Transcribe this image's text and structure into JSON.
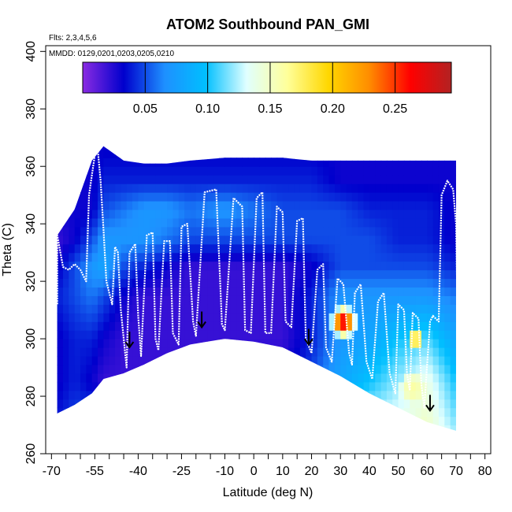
{
  "chart_data": {
    "type": "heatmap",
    "title": "ATOM2 Southbound PAN_GMI",
    "subtitle_flights": "Flts: 2,3,4,5,6",
    "subtitle_dates": "MMDD: 0129,0201,0203,0205,0210",
    "xlabel": "Latitude (deg N)",
    "ylabel": "Theta (C)",
    "xlim": [
      -72,
      82
    ],
    "ylim": [
      260,
      402
    ],
    "x_ticks": [
      -70,
      -55,
      -40,
      -25,
      -10,
      0,
      10,
      20,
      30,
      40,
      50,
      60,
      70,
      80
    ],
    "x_minor_ticks": [
      -65,
      -60,
      -50,
      -45,
      -35,
      -30,
      -20,
      -15,
      -5,
      5,
      15,
      25,
      35,
      45,
      55,
      65,
      75
    ],
    "y_ticks": [
      260,
      280,
      300,
      320,
      340,
      360,
      380,
      400
    ],
    "colorbar": {
      "range": [
        0.0,
        0.295
      ],
      "ticks": [
        0.05,
        0.1,
        0.15,
        0.2,
        0.25
      ],
      "tick_labels": [
        "0.05",
        "0.10",
        "0.15",
        "0.20",
        "0.25"
      ],
      "colors": [
        "#8a2be2",
        "#0000cd",
        "#1e90ff",
        "#00bfff",
        "#e0ffff",
        "#ffff99",
        "#ffd700",
        "#ff8c00",
        "#ff0000",
        "#b22222"
      ]
    },
    "domain": {
      "lat": [
        -68,
        -62,
        -56,
        -52,
        -45,
        -38,
        -30,
        -22,
        -10,
        0,
        10,
        20,
        30,
        40,
        50,
        60,
        70
      ],
      "theta_top": [
        336,
        345,
        362,
        367,
        362,
        361,
        361,
        362,
        363,
        363,
        363,
        362,
        362,
        362,
        362,
        362,
        362
      ],
      "theta_bottom": [
        274,
        277,
        281,
        286,
        288,
        291,
        295,
        298,
        300,
        299,
        297,
        292,
        287,
        281,
        276,
        271,
        268
      ]
    },
    "field_bands": [
      {
        "theta": 268,
        "values": [
          0.04,
          0.05,
          0.06,
          0.06,
          0.07,
          0.08,
          0.08,
          0.09,
          0.1,
          0.1,
          0.1,
          0.11,
          0.12,
          0.13,
          0.14,
          0.15,
          0.12
        ]
      },
      {
        "theta": 285,
        "values": [
          0.03,
          0.04,
          0.03,
          0.02,
          0.02,
          0.02,
          0.02,
          0.02,
          0.02,
          0.03,
          0.03,
          0.05,
          0.08,
          0.1,
          0.12,
          0.14,
          0.1
        ]
      },
      {
        "theta": 300,
        "values": [
          0.03,
          0.04,
          0.04,
          0.03,
          0.02,
          0.02,
          0.02,
          0.02,
          0.02,
          0.02,
          0.02,
          0.04,
          0.07,
          0.08,
          0.1,
          0.11,
          0.08
        ]
      },
      {
        "theta": 315,
        "values": [
          0.04,
          0.05,
          0.06,
          0.05,
          0.03,
          0.02,
          0.02,
          0.02,
          0.02,
          0.02,
          0.02,
          0.04,
          0.07,
          0.07,
          0.07,
          0.07,
          0.06
        ]
      },
      {
        "theta": 325,
        "values": [
          0.03,
          0.05,
          0.07,
          0.08,
          0.05,
          0.04,
          0.03,
          0.02,
          0.02,
          0.02,
          0.02,
          0.03,
          0.05,
          0.05,
          0.05,
          0.05,
          0.04
        ]
      },
      {
        "theta": 335,
        "values": [
          0.02,
          0.03,
          0.05,
          0.07,
          0.07,
          0.07,
          0.06,
          0.05,
          0.05,
          0.05,
          0.05,
          0.05,
          0.05,
          0.05,
          0.04,
          0.04,
          0.03
        ]
      },
      {
        "theta": 345,
        "values": [
          0.03,
          0.03,
          0.03,
          0.05,
          0.06,
          0.07,
          0.07,
          0.06,
          0.07,
          0.06,
          0.05,
          0.05,
          0.05,
          0.04,
          0.04,
          0.04,
          0.03
        ]
      },
      {
        "theta": 355,
        "values": [
          0.03,
          0.03,
          0.03,
          0.04,
          0.04,
          0.04,
          0.04,
          0.04,
          0.04,
          0.04,
          0.04,
          0.04,
          0.03,
          0.03,
          0.03,
          0.03,
          0.03
        ]
      },
      {
        "theta": 368,
        "values": [
          0.03,
          0.03,
          0.03,
          0.03,
          0.03,
          0.03,
          0.03,
          0.03,
          0.03,
          0.03,
          0.03,
          0.03,
          0.03,
          0.03,
          0.03,
          0.03,
          0.03
        ]
      }
    ],
    "hotspots": [
      {
        "lat": 31,
        "theta": 306,
        "value": 0.27,
        "lat_radius": 5,
        "theta_radius": 6
      },
      {
        "lat": 56,
        "theta": 300,
        "value": 0.2,
        "lat_radius": 3,
        "theta_radius": 4
      },
      {
        "lat": 55,
        "theta": 283,
        "value": 0.16,
        "lat_radius": 5,
        "theta_radius": 6
      }
    ],
    "flight_path": [
      [
        -68,
        312
      ],
      [
        -68,
        336
      ],
      [
        -66,
        325
      ],
      [
        -64,
        324
      ],
      [
        -62,
        326
      ],
      [
        -60,
        324
      ],
      [
        -58,
        320
      ],
      [
        -57,
        350
      ],
      [
        -55,
        364
      ],
      [
        -54,
        366
      ],
      [
        -53,
        355
      ],
      [
        -52,
        338
      ],
      [
        -51,
        320
      ],
      [
        -49,
        312
      ],
      [
        -48,
        332
      ],
      [
        -47,
        330
      ],
      [
        -46,
        310
      ],
      [
        -44,
        290
      ],
      [
        -43,
        330
      ],
      [
        -41,
        333
      ],
      [
        -40,
        308
      ],
      [
        -39,
        294
      ],
      [
        -37,
        336
      ],
      [
        -35,
        337
      ],
      [
        -34,
        300
      ],
      [
        -33,
        296
      ],
      [
        -31,
        334
      ],
      [
        -29,
        334
      ],
      [
        -28,
        302
      ],
      [
        -26,
        298
      ],
      [
        -25,
        339
      ],
      [
        -23,
        340
      ],
      [
        -21,
        306
      ],
      [
        -20,
        301
      ],
      [
        -17,
        351
      ],
      [
        -13,
        352
      ],
      [
        -11,
        305
      ],
      [
        -10,
        303
      ],
      [
        -7,
        349
      ],
      [
        -4,
        346
      ],
      [
        -3,
        303
      ],
      [
        -1,
        302
      ],
      [
        1,
        349
      ],
      [
        3,
        351
      ],
      [
        4,
        302
      ],
      [
        6,
        302
      ],
      [
        8,
        346
      ],
      [
        10,
        344
      ],
      [
        11,
        306
      ],
      [
        13,
        304
      ],
      [
        15,
        341
      ],
      [
        17,
        342
      ],
      [
        18,
        300
      ],
      [
        20,
        295
      ],
      [
        22,
        324
      ],
      [
        24,
        326
      ],
      [
        25,
        297
      ],
      [
        27,
        292
      ],
      [
        29,
        321
      ],
      [
        31,
        319
      ],
      [
        33,
        295
      ],
      [
        34,
        291
      ],
      [
        35,
        316
      ],
      [
        37,
        319
      ],
      [
        39,
        292
      ],
      [
        41,
        286
      ],
      [
        43,
        313
      ],
      [
        45,
        316
      ],
      [
        47,
        288
      ],
      [
        49,
        281
      ],
      [
        50,
        312
      ],
      [
        52,
        310
      ],
      [
        53,
        288
      ],
      [
        54,
        282
      ],
      [
        55,
        309
      ],
      [
        57,
        307
      ],
      [
        58,
        284
      ],
      [
        59,
        276
      ],
      [
        61,
        306
      ],
      [
        62,
        308
      ],
      [
        64,
        306
      ],
      [
        65,
        350
      ],
      [
        67,
        355
      ],
      [
        69,
        352
      ],
      [
        70,
        340
      ],
      [
        71,
        280
      ]
    ],
    "arrows": [
      {
        "lat": -43,
        "theta": 297
      },
      {
        "lat": -18,
        "theta": 304
      },
      {
        "lat": 19,
        "theta": 298
      },
      {
        "lat": 61,
        "theta": 275
      }
    ]
  }
}
